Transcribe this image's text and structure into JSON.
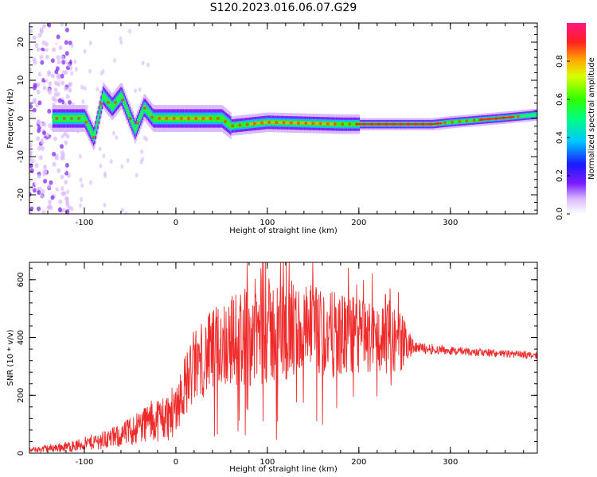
{
  "title": "S120.2023.016.06.07.G29",
  "colors": {
    "snr_line": "#ee2a2a",
    "axis": "#000000",
    "background": "#ffffff"
  },
  "chart_data": [
    {
      "type": "heatmap",
      "xlabel": "Height of straight line (km)",
      "ylabel": "Frequency (Hz)",
      "xlim": [
        -160,
        395
      ],
      "ylim": [
        -25,
        25
      ],
      "xticks": [
        "-100",
        "0",
        "100",
        "200",
        "300"
      ],
      "yticks": [
        "-20",
        "-10",
        "0",
        "10",
        "20"
      ],
      "colorbar": {
        "label": "Normalized spectral amplitude",
        "range": [
          0,
          1
        ],
        "ticks": [
          "0.0",
          "0.2",
          "0.4",
          "0.6",
          "0.8"
        ],
        "colormap": "rainbow (white-purple-blue-cyan-green-yellow-red-magenta)"
      },
      "ridge": [
        {
          "x": -130,
          "y": 0
        },
        {
          "x": -100,
          "y": 0
        },
        {
          "x": -90,
          "y": -5
        },
        {
          "x": -80,
          "y": 6
        },
        {
          "x": -70,
          "y": 3
        },
        {
          "x": -60,
          "y": 6
        },
        {
          "x": -45,
          "y": -3
        },
        {
          "x": -35,
          "y": 3
        },
        {
          "x": -25,
          "y": 0
        },
        {
          "x": 50,
          "y": 0
        },
        {
          "x": 60,
          "y": -2
        },
        {
          "x": 100,
          "y": -1
        },
        {
          "x": 180,
          "y": -1.5
        },
        {
          "x": 280,
          "y": -1.5
        },
        {
          "x": 300,
          "y": -1
        },
        {
          "x": 350,
          "y": 0
        },
        {
          "x": 395,
          "y": 1
        }
      ]
    },
    {
      "type": "line",
      "xlabel": "Height of straight line (km)",
      "ylabel": "SNR (10 * v/v)",
      "xlim": [
        -160,
        395
      ],
      "ylim": [
        0,
        660
      ],
      "xticks": [
        "-100",
        "0",
        "100",
        "200",
        "300"
      ],
      "yticks": [
        "0",
        "200",
        "400",
        "600"
      ],
      "envelope": [
        {
          "x": -160,
          "mean": 10,
          "amp": 8
        },
        {
          "x": -110,
          "mean": 25,
          "amp": 20
        },
        {
          "x": -60,
          "mean": 60,
          "amp": 40
        },
        {
          "x": -30,
          "mean": 110,
          "amp": 70
        },
        {
          "x": -5,
          "mean": 130,
          "amp": 90
        },
        {
          "x": 5,
          "mean": 200,
          "amp": 100
        },
        {
          "x": 20,
          "mean": 300,
          "amp": 130
        },
        {
          "x": 50,
          "mean": 380,
          "amp": 150
        },
        {
          "x": 90,
          "mean": 420,
          "amp": 190
        },
        {
          "x": 130,
          "mean": 420,
          "amp": 180
        },
        {
          "x": 170,
          "mean": 410,
          "amp": 150
        },
        {
          "x": 220,
          "mean": 400,
          "amp": 130
        },
        {
          "x": 245,
          "mean": 390,
          "amp": 110
        },
        {
          "x": 260,
          "mean": 365,
          "amp": 20
        },
        {
          "x": 320,
          "mean": 350,
          "amp": 14
        },
        {
          "x": 395,
          "mean": 338,
          "amp": 12
        }
      ]
    }
  ]
}
